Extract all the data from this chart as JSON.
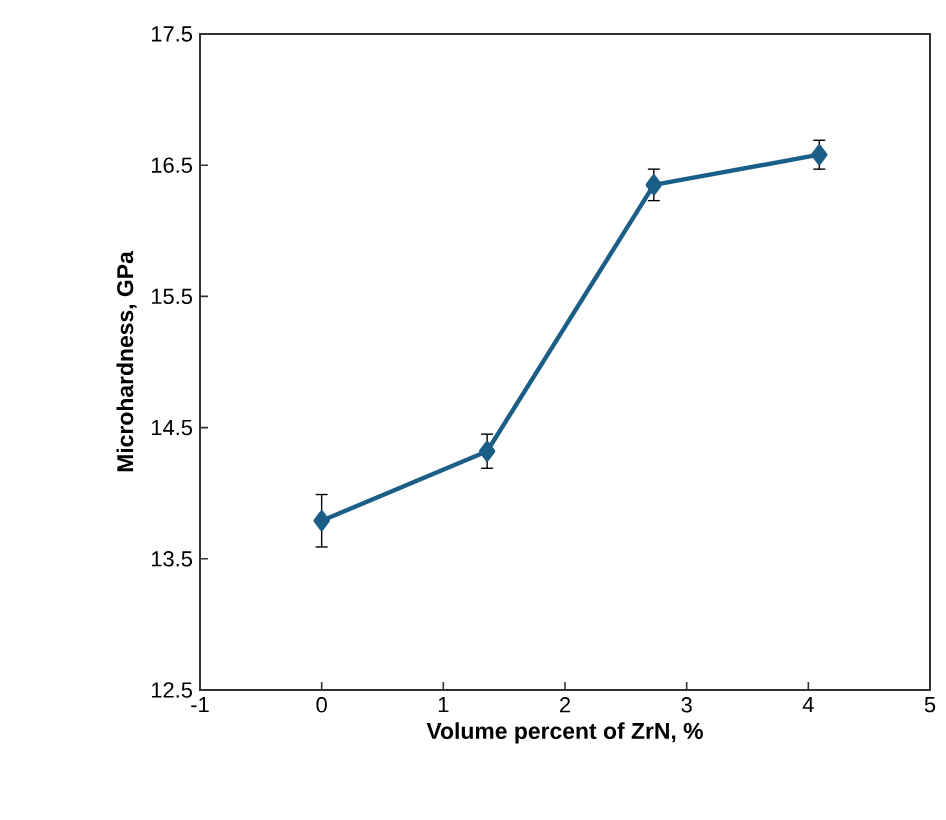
{
  "chart_data": {
    "type": "line",
    "xlabel": "Volume percent of ZrN, %",
    "ylabel": "Microhardness, GPa",
    "x": [
      0,
      1.36,
      2.73,
      4.09
    ],
    "series": [
      {
        "color": "#1b5e87",
        "values": [
          13.79,
          14.32,
          16.35,
          16.58
        ],
        "errors": [
          0.2,
          0.13,
          0.12,
          0.11
        ]
      }
    ],
    "xlim": [
      -1,
      5
    ],
    "xticks": [
      -1,
      0,
      1,
      2,
      3,
      4,
      5
    ],
    "ylim": [
      12.5,
      17.5
    ],
    "yticks": [
      {
        "value": 12.5,
        "label": "12.5"
      },
      {
        "value": 13.5,
        "label": "13.5"
      },
      {
        "value": 14.5,
        "label": "14.5"
      },
      {
        "value": 15.5,
        "label": "15.5"
      },
      {
        "value": 16.5,
        "label": "16.5"
      },
      {
        "value": 17.5,
        "label": "17.5"
      }
    ],
    "marker": "diamond",
    "line_style": "solid",
    "grid": false
  }
}
